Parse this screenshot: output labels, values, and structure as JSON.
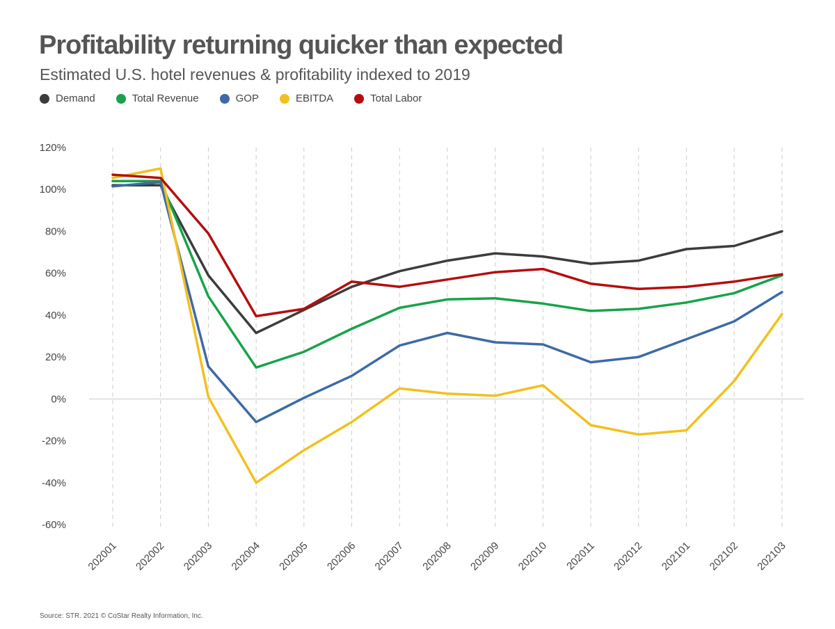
{
  "title": "Profitability returning quicker than expected",
  "subtitle": "Estimated U.S. hotel revenues & profitability indexed to 2019",
  "source": "Source: STR. 2021 © CoStar Realty Information, Inc.",
  "chart_data": {
    "type": "line",
    "title": "Profitability returning quicker than expected",
    "subtitle": "Estimated U.S. hotel revenues & profitability indexed to 2019",
    "x": [
      "202001",
      "202002",
      "202003",
      "202004",
      "202005",
      "202006",
      "202007",
      "202008",
      "202009",
      "202010",
      "202011",
      "202012",
      "202101",
      "202102",
      "202103"
    ],
    "yticks": [
      "120%",
      "100%",
      "80%",
      "60%",
      "40%",
      "20%",
      "0%",
      "-20%",
      "-40%",
      "-60%"
    ],
    "ylim": [
      -60,
      120
    ],
    "grid": "vertical dashed",
    "legend_position": "top-left",
    "series": [
      {
        "name": "Demand",
        "color": "#3c3c3c",
        "values": [
          102,
          102,
          59,
          31.5,
          42.5,
          53.5,
          61,
          66,
          69.5,
          68,
          64.5,
          66,
          71.5,
          73,
          80
        ]
      },
      {
        "name": "Total Revenue",
        "color": "#17a34a",
        "values": [
          104,
          104,
          49,
          15,
          22.5,
          33.5,
          43.5,
          47.5,
          48,
          45.5,
          42,
          43,
          46,
          50.5,
          59
        ]
      },
      {
        "name": "GOP",
        "color": "#3d6aa6",
        "values": [
          101.5,
          103.5,
          15.5,
          -11,
          0.5,
          11,
          25.5,
          31.5,
          27,
          26,
          17.5,
          20,
          28.5,
          37,
          51
        ]
      },
      {
        "name": "EBITDA",
        "color": "#f2c01d",
        "values": [
          105.5,
          110,
          1,
          -40,
          -24.5,
          -11,
          5,
          2.5,
          1.5,
          6.5,
          -12.5,
          -17,
          -15,
          8.5,
          40.5
        ]
      },
      {
        "name": "Total Labor",
        "color": "#b50d0d",
        "values": [
          107,
          105.5,
          79,
          39.5,
          43,
          56,
          53.5,
          57,
          60.5,
          62,
          55,
          52.5,
          53.5,
          56,
          59.5
        ]
      }
    ]
  }
}
